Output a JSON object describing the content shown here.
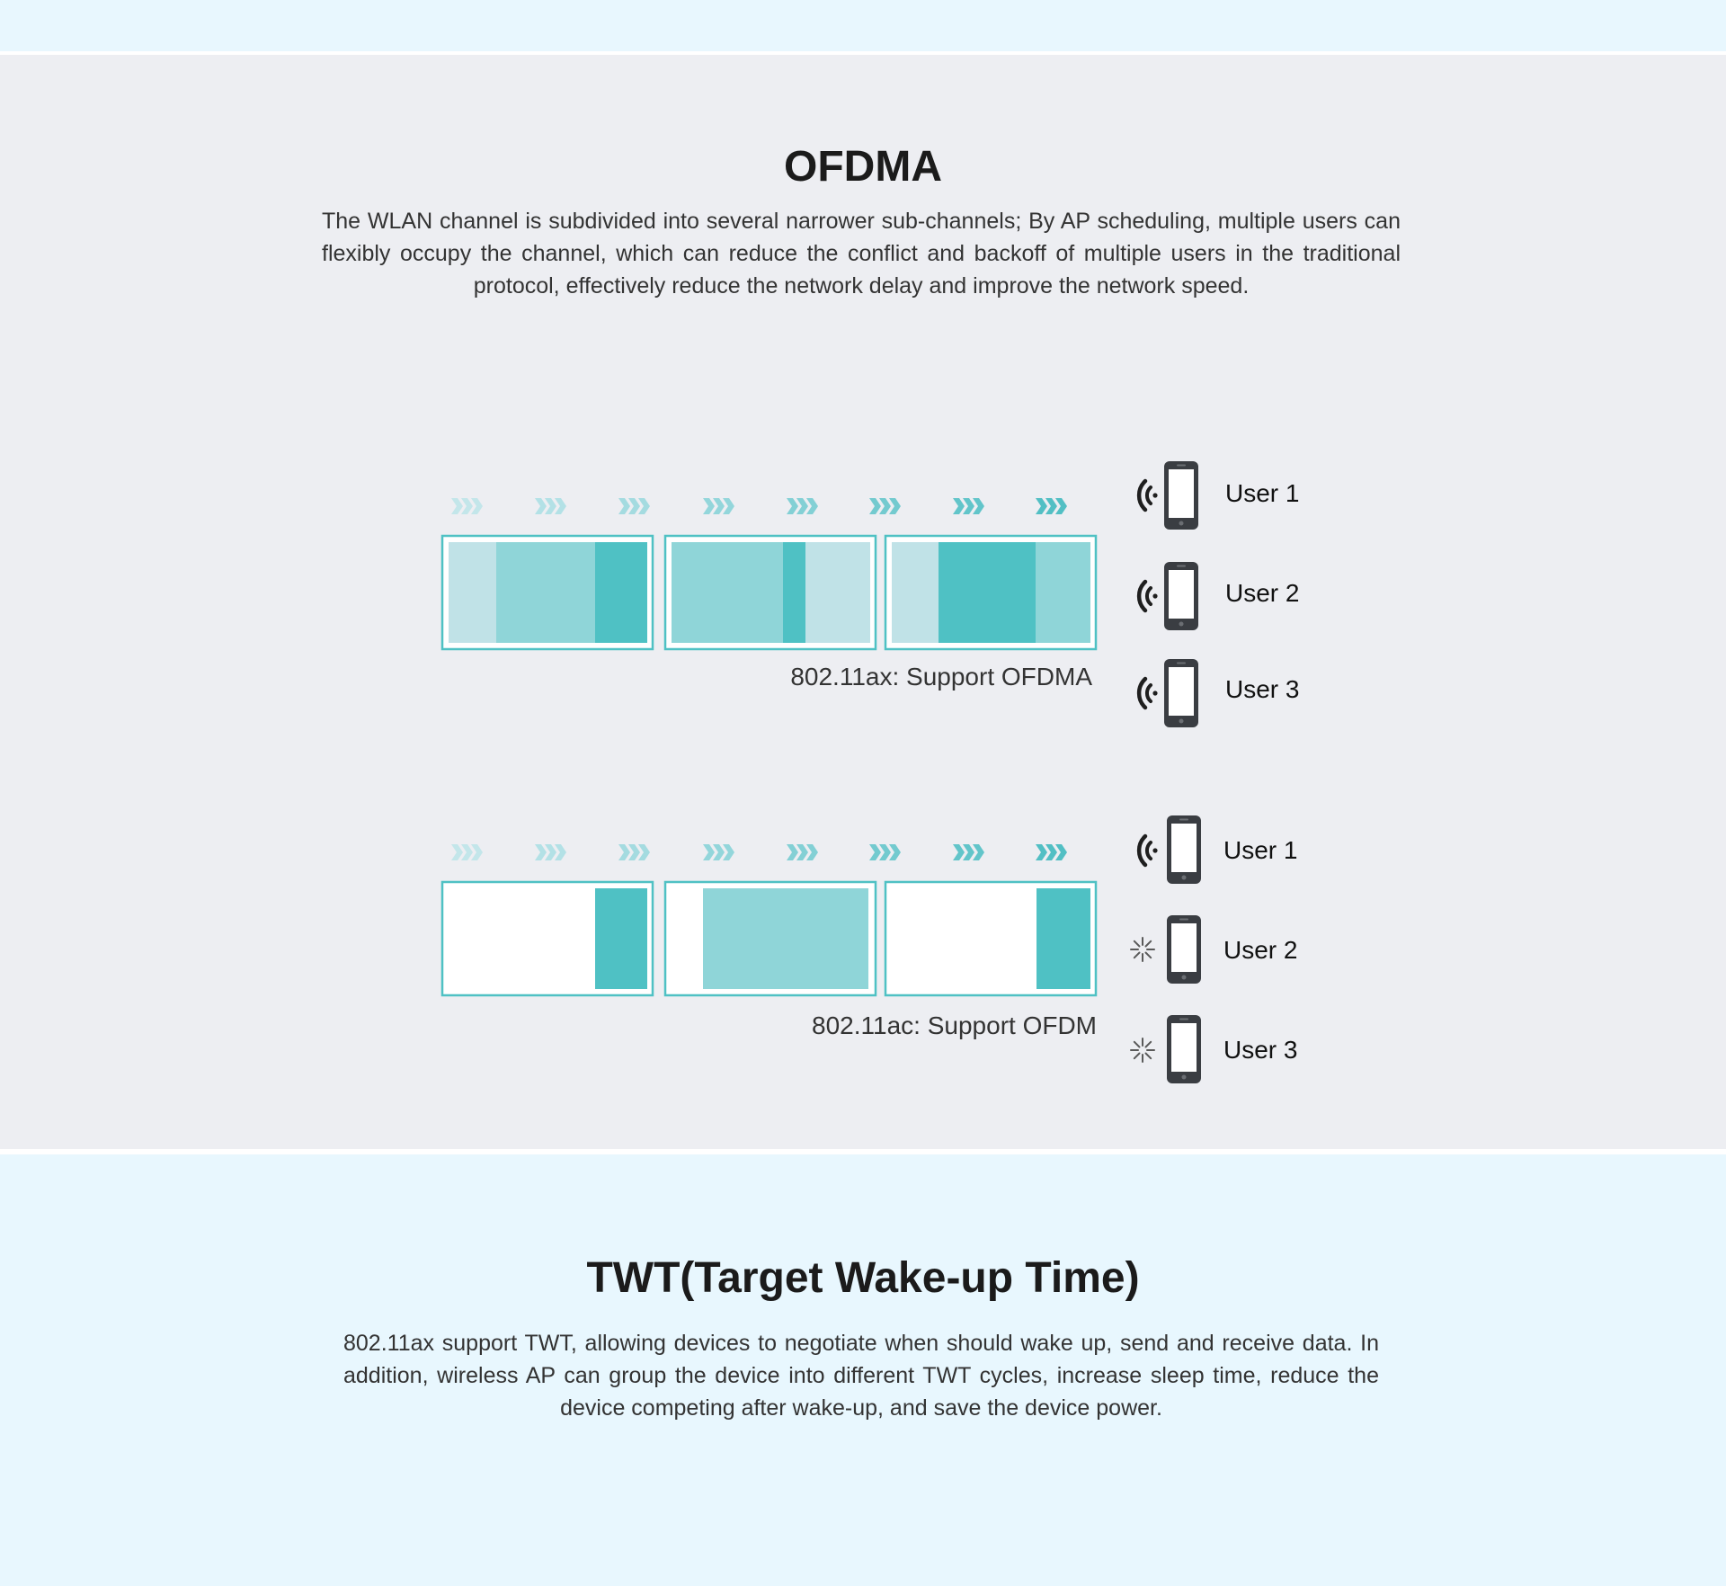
{
  "colors": {
    "teal_dark": "#4fc1c4",
    "teal_mid": "#8fd5d8",
    "teal_light": "#c0e2e7",
    "frame": "#4fc1c4",
    "band_light_blue": "#e8f7fe",
    "band_grey": "#edeef2",
    "phone": "#3a3d42"
  },
  "ofdma_section": {
    "title": "OFDMA",
    "description": "The WLAN channel is subdivided into several narrower sub-channels; By AP scheduling, multiple users can flexibly occupy the channel, which can reduce the conflict and backoff of multiple users in the traditional protocol, effectively reduce the network delay and improve the network speed.",
    "diagrams": [
      {
        "caption": "802.11ax: Support OFDMA",
        "users": [
          {
            "label": "User 1",
            "status_icon": "wifi-signal-icon"
          },
          {
            "label": "User 2",
            "status_icon": "wifi-signal-icon"
          },
          {
            "label": "User 3",
            "status_icon": "wifi-signal-icon"
          }
        ]
      },
      {
        "caption": "802.11ac: Support OFDM",
        "users": [
          {
            "label": "User 1",
            "status_icon": "wifi-signal-icon"
          },
          {
            "label": "User 2",
            "status_icon": "loading-spinner-icon"
          },
          {
            "label": "User 3",
            "status_icon": "loading-spinner-icon"
          }
        ]
      }
    ]
  },
  "twt_section": {
    "title": "TWT(Target Wake-up Time)",
    "description": "802.11ax support TWT, allowing devices to negotiate when should wake up, send and receive data. In addition, wireless AP can group the device into different TWT cycles, increase sleep time, reduce the device competing after wake-up, and save the device power."
  }
}
